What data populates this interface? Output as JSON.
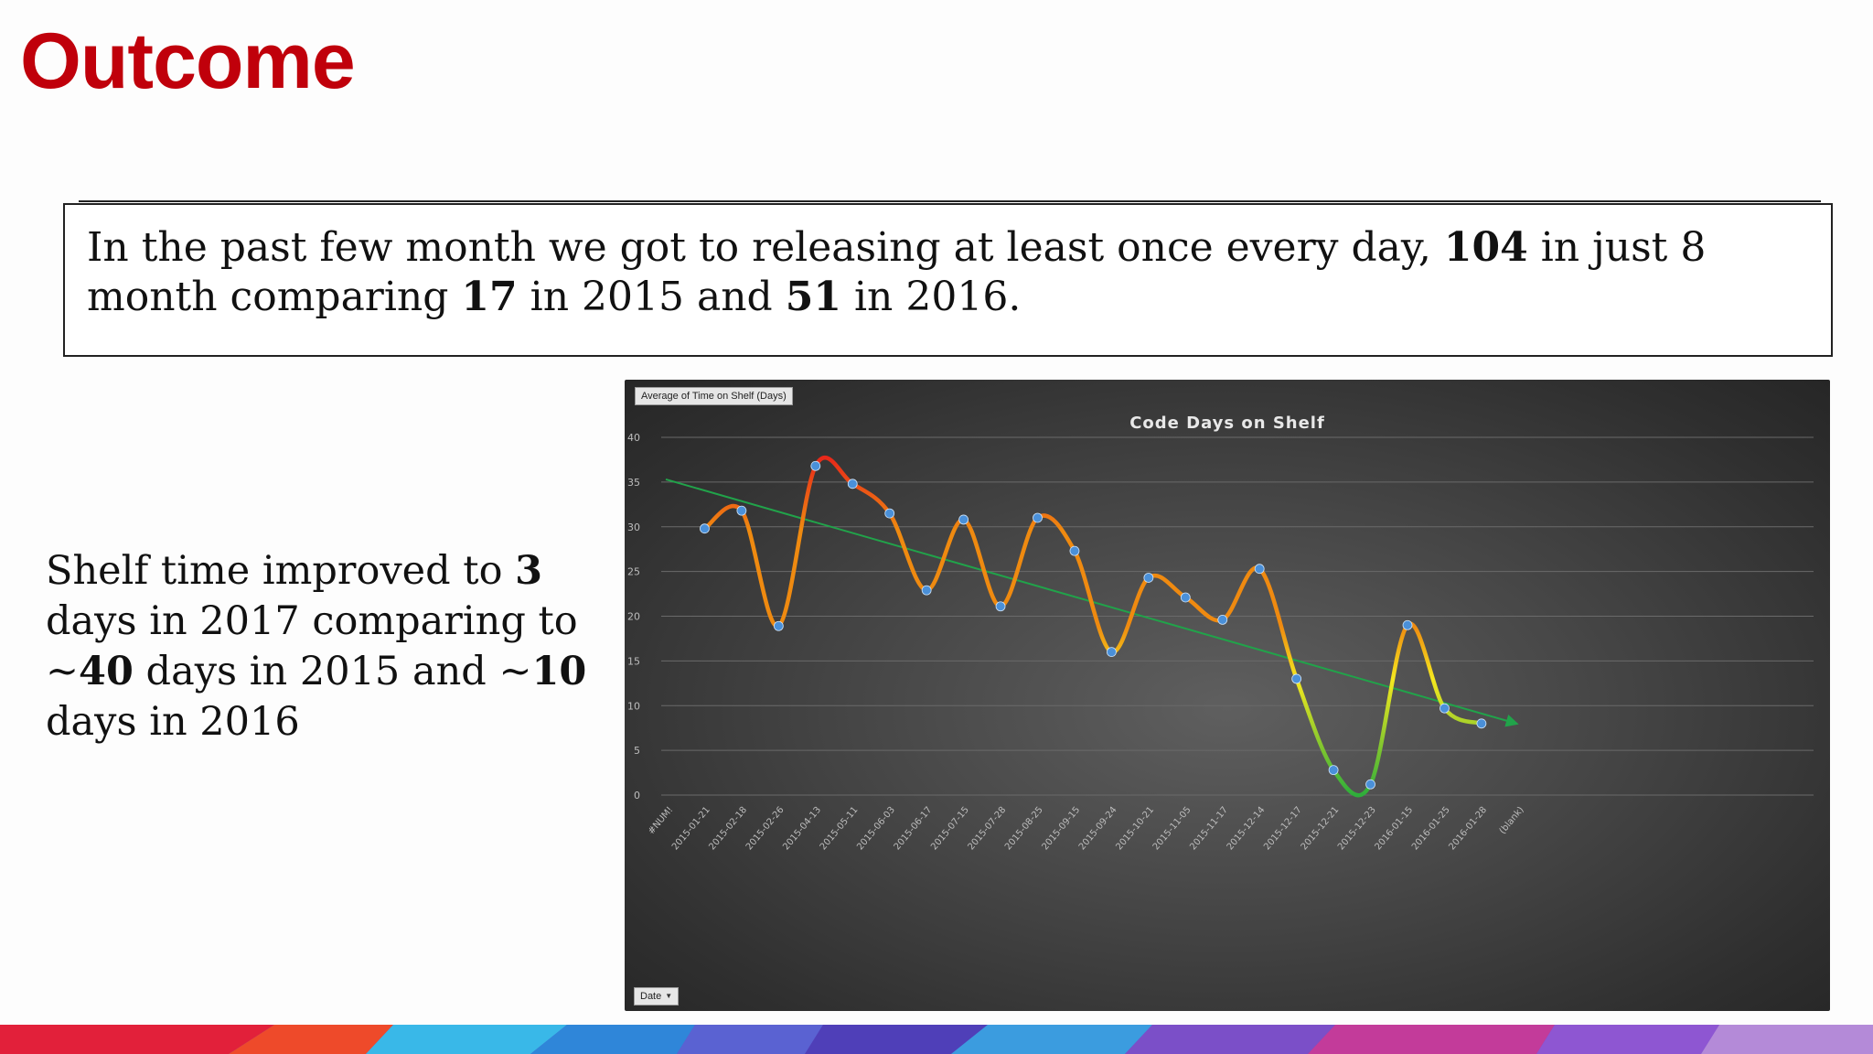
{
  "page": {
    "title": "Outcome",
    "box": {
      "p1": "In the past few month we got to releasing at least once every day, ",
      "b1": "104",
      "p2": " in just 8 month comparing ",
      "b2": "17",
      "p3": " in 2015 and ",
      "b3": "51",
      "p4": " in 2016."
    },
    "side": {
      "p1": "Shelf time improved to ",
      "b1": "3",
      "p2": " days in 2017 comparing to ~",
      "b2": "40",
      "p3": " days in 2015 and ~",
      "b3": "10",
      "p4": " days in 2016"
    }
  },
  "chart_data": {
    "type": "line",
    "title": "Code Days on Shelf",
    "value_field_button": "Average of Time on Shelf (Days)",
    "axis_field_button": "Date",
    "categories": [
      "#NUM!",
      "2015-01-21",
      "2015-02-18",
      "2015-02-26",
      "2015-04-13",
      "2015-05-11",
      "2015-06-03",
      "2015-06-17",
      "2015-07-15",
      "2015-07-28",
      "2015-08-25",
      "2015-09-15",
      "2015-09-24",
      "2015-10-21",
      "2015-11-05",
      "2015-11-17",
      "2015-12-14",
      "2015-12-17",
      "2015-12-21",
      "2015-12-23",
      "2016-01-15",
      "2016-01-25",
      "2016-01-28",
      "(blank)"
    ],
    "series": [
      {
        "values": [
          null,
          29.8,
          31.8,
          18.9,
          36.8,
          34.8,
          31.5,
          22.9,
          30.8,
          21.1,
          31.0,
          27.3,
          16.0,
          24.3,
          22.1,
          19.6,
          25.3,
          13.0,
          2.8,
          1.2,
          19.0,
          9.7,
          8.0,
          null
        ]
      }
    ],
    "trendline": {
      "type": "linear",
      "start": 35.3,
      "end": 8.0
    },
    "ylim": [
      0,
      40
    ],
    "yticks": [
      0,
      5,
      10,
      15,
      20,
      25,
      30,
      35,
      40
    ],
    "grid": true,
    "legend": "none",
    "colors": {
      "high": "#e8261a",
      "mid": "#ef8a10",
      "low_mid": "#f5e81f",
      "low": "#2eae3a",
      "trend": "#21a34a",
      "marker": "#4a90d9"
    }
  }
}
